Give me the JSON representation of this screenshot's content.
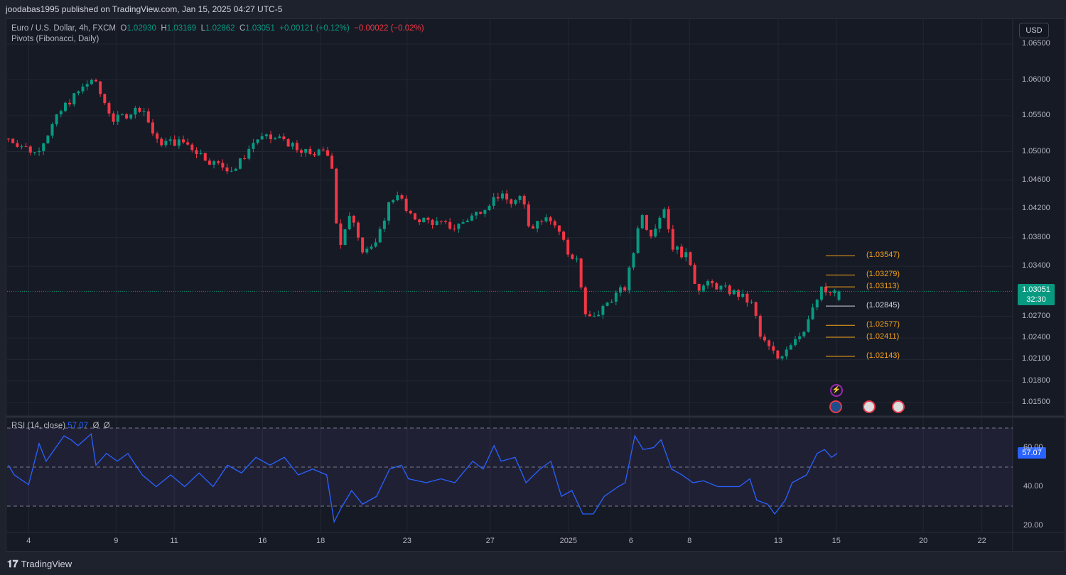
{
  "header": {
    "published": "joodabas1995 published on TradingView.com, Jan 15, 2025 04:27 UTC-5"
  },
  "legend": {
    "symbol": "Euro / U.S. Dollar, 4h, FXCM",
    "o_label": "O",
    "o": "1.02930",
    "h_label": "H",
    "h": "1.03169",
    "l_label": "L",
    "l": "1.02862",
    "c_label": "C",
    "c": "1.03051",
    "change": "+0.00121 (+0.12%)",
    "change2": "−0.00022 (−0.02%)",
    "indicator": "Pivots (Fibonacci, Daily)"
  },
  "currency": "USD",
  "price_axis": [
    "1.06500",
    "1.06000",
    "1.05500",
    "1.05000",
    "1.04600",
    "1.04200",
    "1.03800",
    "1.03400",
    "1.02700",
    "1.02400",
    "1.02100",
    "1.01800",
    "1.01500"
  ],
  "price_tag": {
    "price": "1.03051",
    "countdown": "32:30"
  },
  "pivots": [
    {
      "label": "(1.03547)",
      "value": 1.03547
    },
    {
      "label": "(1.03279)",
      "value": 1.03279
    },
    {
      "label": "(1.03113)",
      "value": 1.03113
    },
    {
      "label": "(1.02845)",
      "value": 1.02845,
      "pivot": true
    },
    {
      "label": "(1.02577)",
      "value": 1.02577
    },
    {
      "label": "(1.02411)",
      "value": 1.02411
    },
    {
      "label": "(1.02143)",
      "value": 1.02143
    }
  ],
  "rsi": {
    "label": "RSI (14, close)",
    "value": "57.07",
    "extra1": "Ø",
    "extra2": "Ø",
    "axis": [
      "60.00",
      "40.00",
      "20.00"
    ]
  },
  "x_ticks": [
    {
      "label": "4",
      "bar": 4.6
    },
    {
      "label": "9",
      "bar": 24.6
    },
    {
      "label": "11",
      "bar": 37.9
    },
    {
      "label": "16",
      "bar": 58.1
    },
    {
      "label": "18",
      "bar": 71.4
    },
    {
      "label": "23",
      "bar": 91.2
    },
    {
      "label": "27",
      "bar": 110.2
    },
    {
      "label": "2025",
      "bar": 128.1
    },
    {
      "label": "6",
      "bar": 142.4
    },
    {
      "label": "8",
      "bar": 155.8
    },
    {
      "label": "13",
      "bar": 176.1
    },
    {
      "label": "15",
      "bar": 189.4
    },
    {
      "label": "20",
      "bar": 209.3
    },
    {
      "label": "22",
      "bar": 222.7
    }
  ],
  "footer": {
    "brand": "TradingView"
  },
  "colors": {
    "up": "#089981",
    "down": "#f23645",
    "pivot": "#f7a21b",
    "rsi": "#2962ff"
  },
  "chart_data": {
    "type": "candlestick",
    "ylim": [
      1.013,
      1.068
    ],
    "close_path": [
      [
        0,
        1.0518
      ],
      [
        6.2,
        1.0498
      ],
      [
        12.7,
        1.0563
      ],
      [
        19.2,
        1.0602
      ],
      [
        24.1,
        1.0543
      ],
      [
        30.6,
        1.0563
      ],
      [
        33.8,
        1.0513
      ],
      [
        40.3,
        1.0513
      ],
      [
        46.8,
        1.0484
      ],
      [
        51.7,
        1.0474
      ],
      [
        56.6,
        1.0518
      ],
      [
        63.1,
        1.0518
      ],
      [
        66.3,
        1.0498
      ],
      [
        72.8,
        1.0498
      ],
      [
        74.5,
        1.0474
      ],
      [
        75.3,
        1.036
      ],
      [
        78.5,
        1.0414
      ],
      [
        81,
        1.0365
      ],
      [
        84.2,
        1.0369
      ],
      [
        86.7,
        1.0424
      ],
      [
        89.1,
        1.0444
      ],
      [
        91.5,
        1.0409
      ],
      [
        95.6,
        1.0404
      ],
      [
        102,
        1.0394
      ],
      [
        107,
        1.0414
      ],
      [
        111.9,
        1.0439
      ],
      [
        115.1,
        1.0429
      ],
      [
        117.6,
        1.0434
      ],
      [
        119.2,
        1.0394
      ],
      [
        123.3,
        1.0414
      ],
      [
        126.5,
        1.0384
      ],
      [
        128.1,
        1.0355
      ],
      [
        130.6,
        1.035
      ],
      [
        131.4,
        1.0271
      ],
      [
        133.8,
        1.0266
      ],
      [
        137.9,
        1.0296
      ],
      [
        141.1,
        1.031
      ],
      [
        143.6,
        1.0375
      ],
      [
        144.4,
        1.0419
      ],
      [
        146.8,
        1.0384
      ],
      [
        150.1,
        1.0424
      ],
      [
        151.7,
        1.0369
      ],
      [
        155.8,
        1.035
      ],
      [
        157.4,
        1.031
      ],
      [
        160.7,
        1.0315
      ],
      [
        167.2,
        1.03
      ],
      [
        170.4,
        1.0285
      ],
      [
        172,
        1.0241
      ],
      [
        176.1,
        1.0211
      ],
      [
        178.5,
        1.0231
      ],
      [
        181.8,
        1.0251
      ],
      [
        184.2,
        1.0281
      ],
      [
        185.9,
        1.0307
      ],
      [
        188.3,
        1.03
      ],
      [
        189.6,
        1.03051
      ]
    ],
    "rsi_path": [
      [
        0,
        51
      ],
      [
        1.3,
        46
      ],
      [
        4.6,
        41
      ],
      [
        7,
        62
      ],
      [
        8.6,
        53
      ],
      [
        12.7,
        66
      ],
      [
        14.3,
        64
      ],
      [
        15.9,
        61
      ],
      [
        18.9,
        67
      ],
      [
        20,
        51
      ],
      [
        22.4,
        57
      ],
      [
        24.9,
        53
      ],
      [
        27.3,
        57
      ],
      [
        30.6,
        46
      ],
      [
        33.8,
        40
      ],
      [
        37.1,
        46
      ],
      [
        40.3,
        40
      ],
      [
        43.6,
        47
      ],
      [
        46.8,
        40
      ],
      [
        50.1,
        51
      ],
      [
        53.3,
        47
      ],
      [
        56.6,
        55
      ],
      [
        59.8,
        51
      ],
      [
        63.1,
        55
      ],
      [
        66.3,
        46
      ],
      [
        69.6,
        49
      ],
      [
        72.8,
        46
      ],
      [
        74.5,
        22
      ],
      [
        76.1,
        29
      ],
      [
        78.5,
        38
      ],
      [
        81,
        31
      ],
      [
        84.2,
        35
      ],
      [
        87.2,
        49
      ],
      [
        89.9,
        51
      ],
      [
        91.5,
        44
      ],
      [
        95.6,
        42
      ],
      [
        98.9,
        44
      ],
      [
        102.1,
        42
      ],
      [
        106.2,
        53
      ],
      [
        108.6,
        49
      ],
      [
        111.1,
        61
      ],
      [
        112.7,
        53
      ],
      [
        115.9,
        55
      ],
      [
        118.4,
        42
      ],
      [
        121.6,
        49
      ],
      [
        124.1,
        53
      ],
      [
        126.5,
        35
      ],
      [
        128.9,
        38
      ],
      [
        131.4,
        26
      ],
      [
        133.8,
        26
      ],
      [
        136.3,
        35
      ],
      [
        139.5,
        40
      ],
      [
        141.1,
        42
      ],
      [
        143.3,
        66
      ],
      [
        145.2,
        59
      ],
      [
        147.6,
        60
      ],
      [
        149.3,
        64
      ],
      [
        151.7,
        49
      ],
      [
        154.1,
        46
      ],
      [
        156.6,
        42
      ],
      [
        159,
        43
      ],
      [
        162.3,
        40
      ],
      [
        167.2,
        40
      ],
      [
        169.6,
        44
      ],
      [
        171.2,
        33
      ],
      [
        173.7,
        31
      ],
      [
        175.3,
        26
      ],
      [
        177.7,
        33
      ],
      [
        179.3,
        42
      ],
      [
        182.6,
        46
      ],
      [
        185,
        57
      ],
      [
        186.7,
        59
      ],
      [
        188.3,
        55
      ],
      [
        189.6,
        57.07
      ]
    ]
  }
}
